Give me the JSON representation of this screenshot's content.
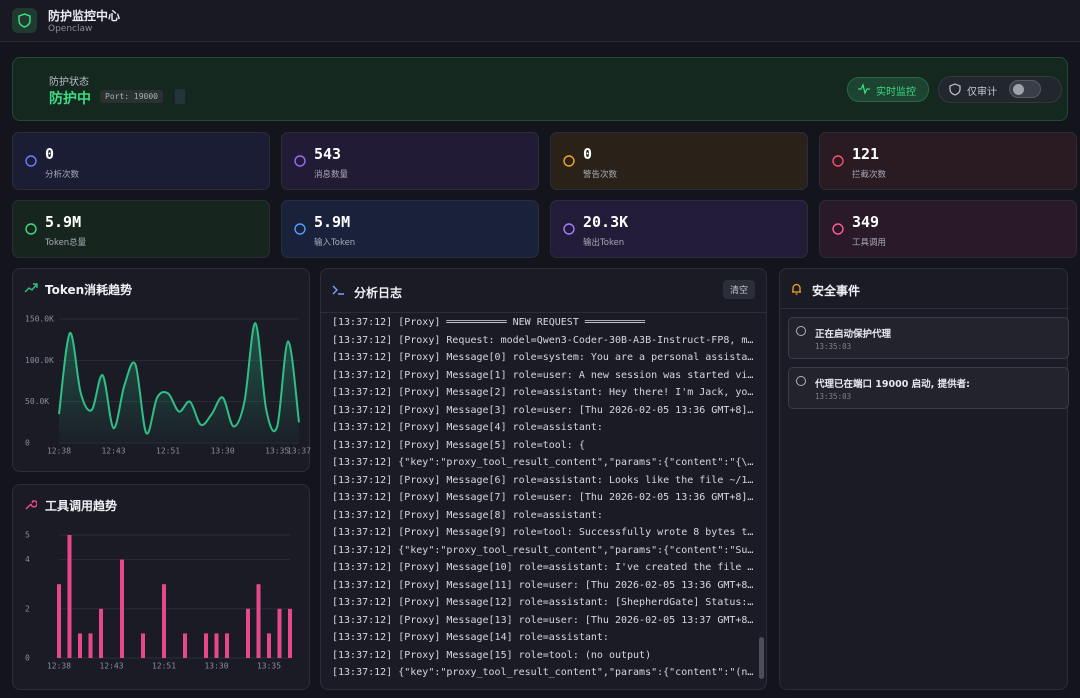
{
  "header": {
    "title": "防护监控中心",
    "subtitle": "Openclaw"
  },
  "status": {
    "label": "防护状态",
    "state": "防护中",
    "port": "Port: 19000",
    "monitor_button": "实时监控",
    "audit_toggle": "仅审计"
  },
  "stats": [
    {
      "value": "0",
      "label": "分析次数"
    },
    {
      "value": "543",
      "label": "消息数量"
    },
    {
      "value": "0",
      "label": "警告次数"
    },
    {
      "value": "121",
      "label": "拦截次数"
    },
    {
      "value": "5.9M",
      "label": "Token总量"
    },
    {
      "value": "5.9M",
      "label": "输入Token"
    },
    {
      "value": "20.3K",
      "label": "输出Token"
    },
    {
      "value": "349",
      "label": "工具调用"
    }
  ],
  "token_chart": {
    "type": "line",
    "title": "Token消耗趋势",
    "color": "#2fbf86",
    "categories": [
      "12:38",
      null,
      null,
      null,
      null,
      "12:43",
      null,
      null,
      null,
      null,
      "12:51",
      null,
      null,
      null,
      null,
      "13:30",
      null,
      null,
      null,
      null,
      "13:35",
      null,
      "13:37"
    ],
    "values": [
      35000,
      133000,
      60000,
      40000,
      82000,
      18000,
      70000,
      95000,
      12000,
      55000,
      60000,
      38000,
      50000,
      22000,
      35000,
      55000,
      20000,
      50000,
      145000,
      40000,
      20000,
      123000,
      25000
    ],
    "ylim": [
      0,
      150000
    ],
    "yticks": [
      0,
      {
        "value": 50000,
        "label": "50.0K"
      },
      {
        "value": 100000,
        "label": "100.0K"
      },
      {
        "value": 150000,
        "label": "150.0K"
      }
    ],
    "grid": true
  },
  "tool_chart": {
    "type": "bar",
    "title": "工具调用趋势",
    "color": "#e5498a",
    "categories": [
      "12:38",
      null,
      null,
      null,
      null,
      "12:43",
      null,
      null,
      null,
      null,
      "12:51",
      null,
      null,
      null,
      null,
      "13:30",
      null,
      null,
      null,
      null,
      "13:35",
      null,
      null
    ],
    "values": [
      3,
      5,
      1,
      1,
      2,
      0,
      4,
      0,
      1,
      0,
      3,
      0,
      1,
      0,
      1,
      1,
      1,
      0,
      2,
      3,
      1,
      2,
      2
    ],
    "ylim": [
      0,
      5
    ],
    "yticks": [
      0,
      2,
      4,
      5
    ],
    "grid": true
  },
  "log": {
    "title": "分析日志",
    "clear_button": "清空",
    "lines": [
      "[13:37:12] [Proxy] ══════════ NEW REQUEST ══════════",
      "[13:37:12] [Proxy] Request: model=Qwen3-Coder-30B-A3B-Instruct-FP8, m…",
      "[13:37:12] [Proxy] Message[0] role=system: You are a personal assista…",
      "[13:37:12] [Proxy] Message[1] role=user: A new session was started vi…",
      "[13:37:12] [Proxy] Message[2] role=assistant: Hey there! I'm Jack, yo…",
      "[13:37:12] [Proxy] Message[3] role=user: [Thu 2026-02-05 13:36 GMT+8]…",
      "[13:37:12] [Proxy] Message[4] role=assistant:",
      "[13:37:12] [Proxy] Message[5] role=tool: {",
      "[13:37:12] {\"key\":\"proxy_tool_result_content\",\"params\":{\"content\":\"{\\…",
      "[13:37:12] [Proxy] Message[6] role=assistant: Looks like the file ~/1…",
      "[13:37:12] [Proxy] Message[7] role=user: [Thu 2026-02-05 13:36 GMT+8]…",
      "[13:37:12] [Proxy] Message[8] role=assistant:",
      "[13:37:12] [Proxy] Message[9] role=tool: Successfully wrote 8 bytes t…",
      "[13:37:12] {\"key\":\"proxy_tool_result_content\",\"params\":{\"content\":\"Su…",
      "[13:37:12] [Proxy] Message[10] role=assistant: I've created the file …",
      "[13:37:12] [Proxy] Message[11] role=user: [Thu 2026-02-05 13:36 GMT+8…",
      "[13:37:12] [Proxy] Message[12] role=assistant: [ShepherdGate] Status:…",
      "[13:37:12] [Proxy] Message[13] role=user: [Thu 2026-02-05 13:37 GMT+8…",
      "[13:37:12] [Proxy] Message[14] role=assistant:",
      "[13:37:12] [Proxy] Message[15] role=tool: (no output)",
      "[13:37:12] {\"key\":\"proxy_tool_result_content\",\"params\":{\"content\":\"(n…"
    ]
  },
  "events": {
    "title": "安全事件",
    "items": [
      {
        "text": "正在启动保护代理",
        "time": "13:35:03"
      },
      {
        "text": "代理已在端口 19000 启动, 提供者:",
        "time": "13:35:03"
      }
    ]
  }
}
